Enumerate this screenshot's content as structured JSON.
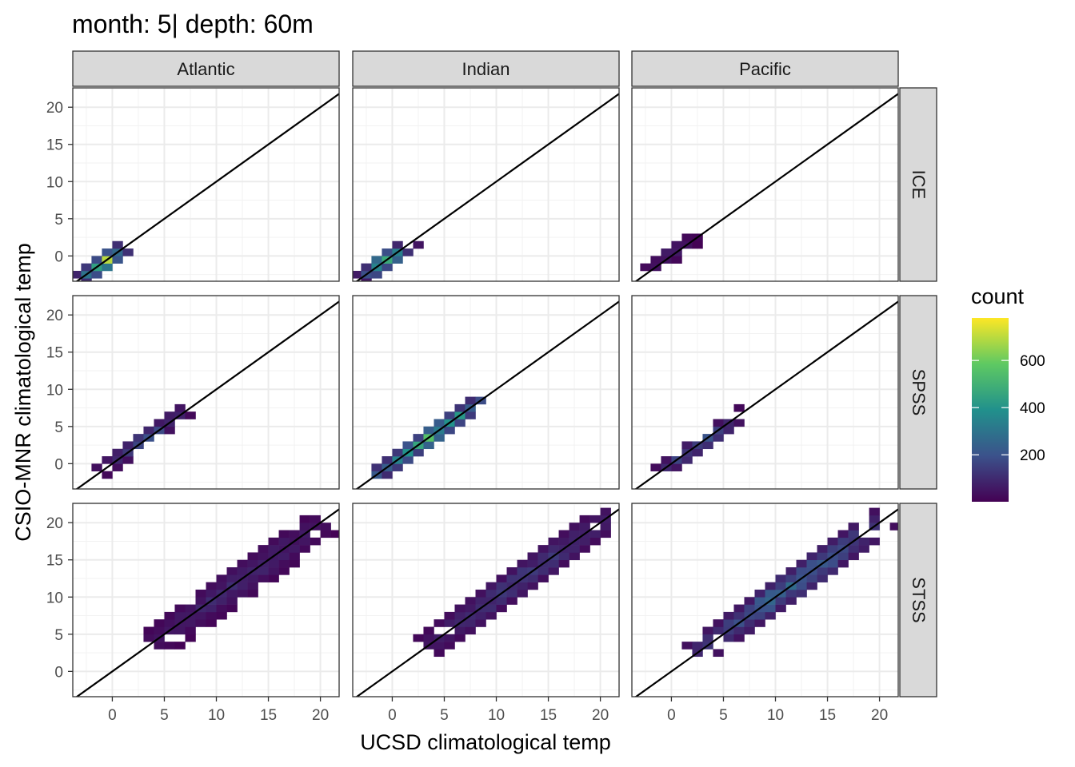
{
  "chart_data": {
    "type": "heatmap",
    "title": "month: 5| depth: 60m",
    "xlabel": "UCSD climatological temp",
    "ylabel": "CSIO-MNR climatological temp",
    "xlim": [
      -3.8,
      21.8
    ],
    "ylim": [
      -3.4,
      22.6
    ],
    "x_ticks": [
      "0",
      "5",
      "10",
      "15",
      "20"
    ],
    "y_ticks": [
      "0",
      "5",
      "10",
      "15",
      "20"
    ],
    "x_tick_values": [
      0,
      5,
      10,
      15,
      20
    ],
    "y_tick_values": [
      0,
      5,
      10,
      15,
      20
    ],
    "bin_width": 1.0,
    "reference_line": "y = x",
    "grid": true,
    "columns": [
      "Atlantic",
      "Indian",
      "Pacific"
    ],
    "rows": [
      "ICE",
      "SPSS",
      "STSS"
    ],
    "legend": {
      "title": "count",
      "position": "right",
      "range": [
        1,
        780
      ],
      "ticks": [
        "200",
        "400",
        "600"
      ],
      "tick_values": [
        200,
        400,
        600
      ],
      "colors": [
        "#440154",
        "#3b528b",
        "#21918c",
        "#5ec962",
        "#fde725"
      ]
    },
    "panels": [
      {
        "column": "Atlantic",
        "row": "ICE",
        "center": {
          "x": -0.8,
          "y": -0.9
        },
        "spread": 2,
        "peak": 760
      },
      {
        "column": "Indian",
        "row": "ICE",
        "center": {
          "x": -0.6,
          "y": -0.6
        },
        "spread": 2,
        "peak": 650
      },
      {
        "column": "Pacific",
        "row": "ICE",
        "center": {
          "x": -0.3,
          "y": 0.1
        },
        "spread": 2,
        "peak": 90
      },
      {
        "column": "Atlantic",
        "row": "SPSS",
        "center": {
          "x": 3.0,
          "y": 3.2
        },
        "spread": 4,
        "peak": 210
      },
      {
        "column": "Indian",
        "row": "SPSS",
        "center": {
          "x": 3.5,
          "y": 3.5
        },
        "spread": 5,
        "peak": 600
      },
      {
        "column": "Pacific",
        "row": "SPSS",
        "center": {
          "x": 2.8,
          "y": 2.6
        },
        "spread": 4,
        "peak": 230
      },
      {
        "column": "Atlantic",
        "row": "STSS",
        "center": {
          "x": 12.2,
          "y": 12.0
        },
        "spread": 8,
        "peak": 120
      },
      {
        "column": "Indian",
        "row": "STSS",
        "center": {
          "x": 12.5,
          "y": 12.5
        },
        "spread": 9,
        "peak": 160
      },
      {
        "column": "Pacific",
        "row": "STSS",
        "center": {
          "x": 11.5,
          "y": 11.5
        },
        "spread": 9,
        "peak": 300
      }
    ]
  }
}
